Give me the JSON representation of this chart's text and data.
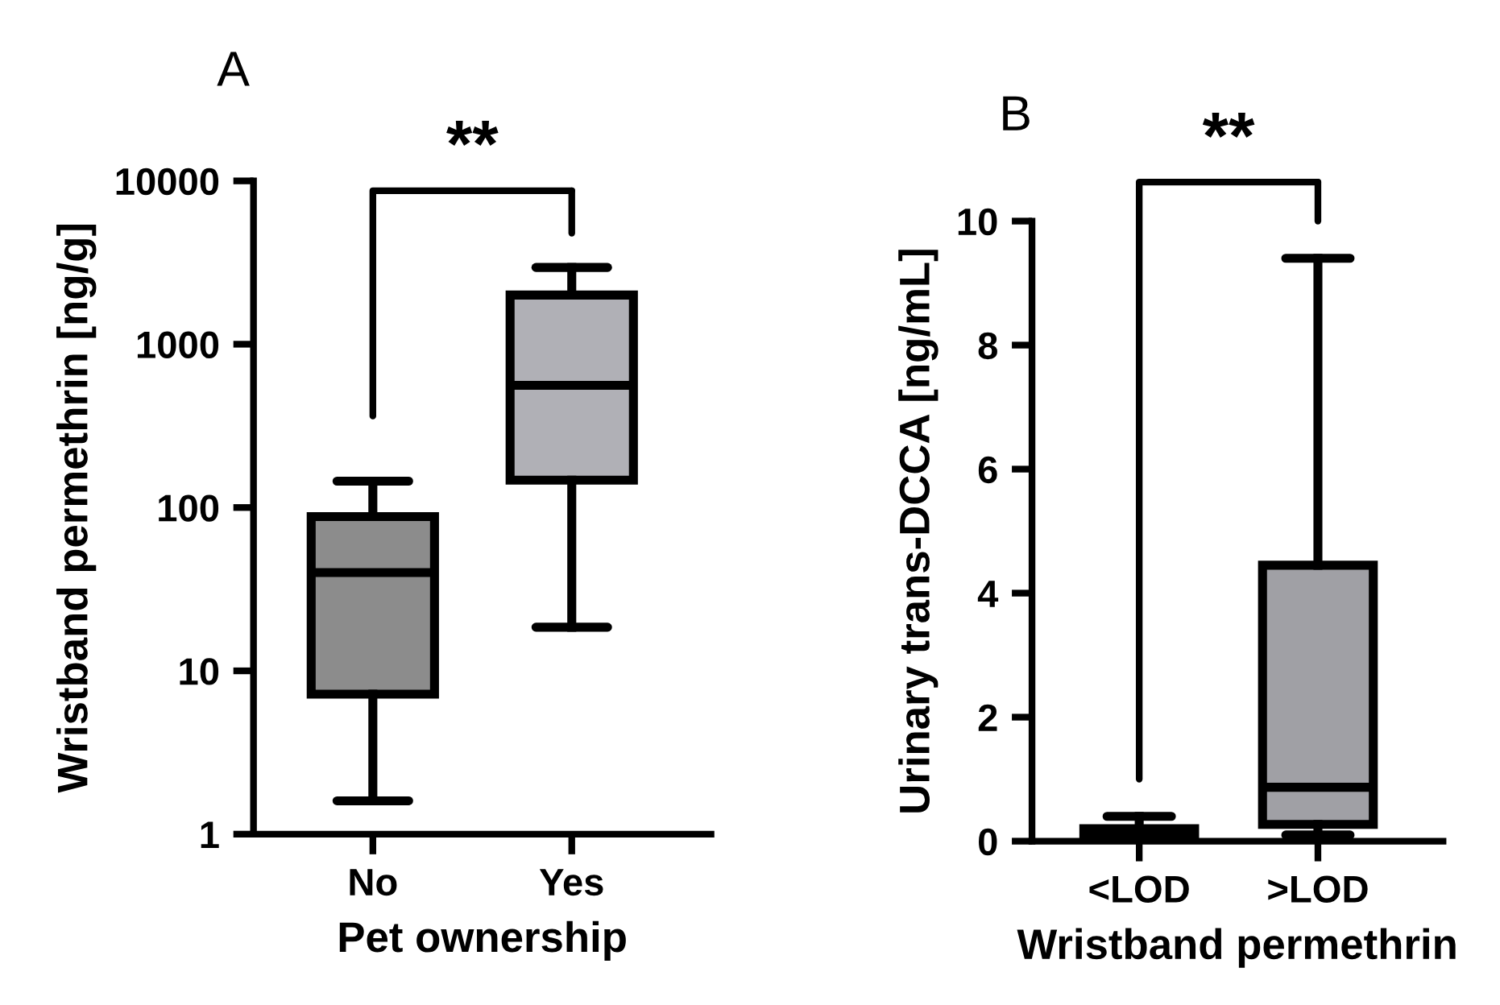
{
  "chart_data": [
    {
      "type": "box",
      "title": "A",
      "xlabel": "Pet ownership",
      "ylabel": "Wristband permethrin [ng/g]",
      "categories": [
        "No",
        "Yes"
      ],
      "log": "y",
      "ylim": [
        1,
        10000
      ],
      "yticks": [
        1,
        10,
        100,
        1000,
        10000
      ],
      "colors": [
        "#8c8c8c",
        "#b0b0b6"
      ],
      "boxes": [
        {
          "low": 1.6,
          "q1": 7.2,
          "median": 40,
          "q3": 88,
          "high": 145
        },
        {
          "low": 18.5,
          "q1": 147,
          "median": 560,
          "q3": 2000,
          "high": 2950
        }
      ],
      "annotations": [
        "**"
      ]
    },
    {
      "type": "box",
      "title": "B",
      "xlabel": "Wristband permethrin",
      "ylabel": "Urinary trans-DCCA [ng/mL]",
      "categories": [
        "<LOD",
        ">LOD"
      ],
      "ylim": [
        0,
        10
      ],
      "yticks": [
        0,
        2,
        4,
        6,
        8,
        10
      ],
      "colors": [
        "#707070",
        "#a0a0a5"
      ],
      "boxes": [
        {
          "low": 0,
          "q1": 0.02,
          "median": 0.1,
          "q3": 0.2,
          "high": 0.4
        },
        {
          "low": 0.1,
          "q1": 0.27,
          "median": 0.87,
          "q3": 4.45,
          "high": 9.4
        }
      ],
      "annotations": [
        "**"
      ]
    }
  ]
}
